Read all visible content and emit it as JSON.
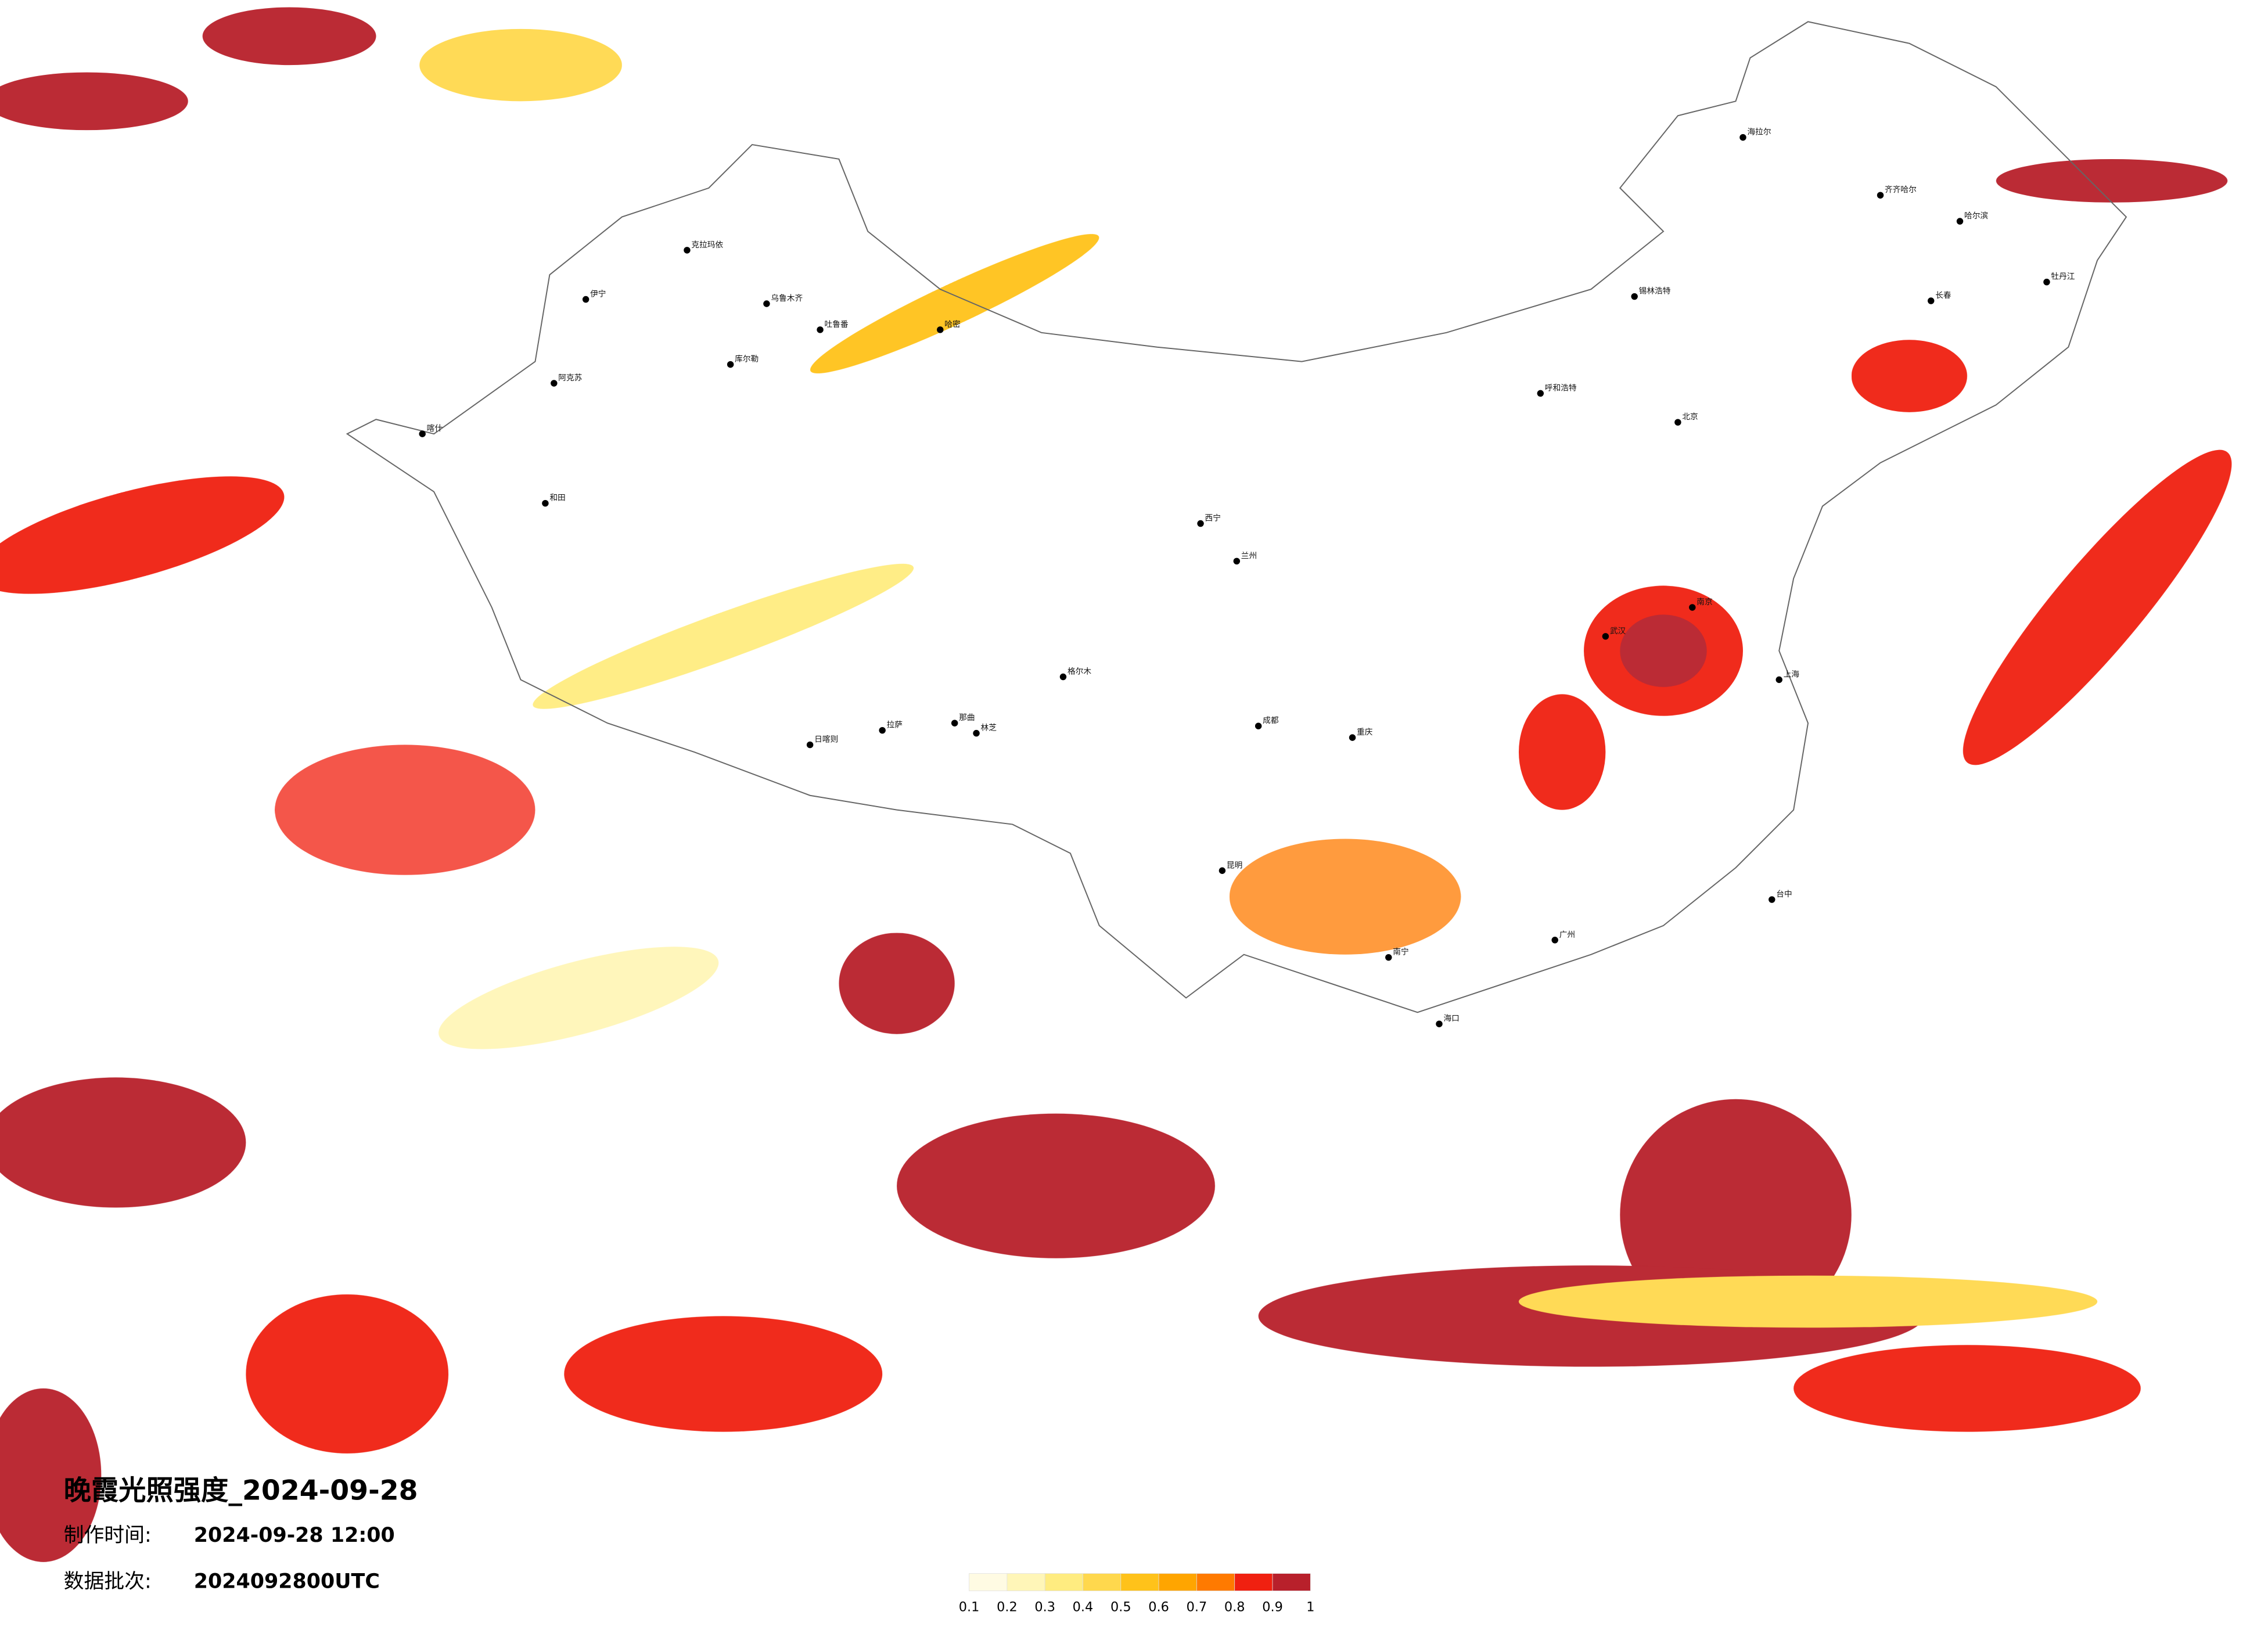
{
  "header": {
    "title": "晚霞光照强度_2024-09-28",
    "made_label": "制作时间:",
    "made_value": "2024-09-28 12:00",
    "batch_label": "数据批次:",
    "batch_value": "2024092800UTC"
  },
  "colorbar": {
    "ticks": [
      0.1,
      0.2,
      0.3,
      0.4,
      0.5,
      0.6,
      0.7,
      0.8,
      0.9,
      1
    ],
    "colors": [
      "#fffbe3",
      "#fff6b8",
      "#ffec80",
      "#ffd84d",
      "#ffc21a",
      "#ffa500",
      "#ff7a00",
      "#f02010",
      "#b8202b"
    ]
  },
  "cities": [
    "乌鲁木齐",
    "克拉玛依",
    "伊宁",
    "阿克苏",
    "和田",
    "喀什",
    "吐鲁番",
    "库尔勒",
    "哈密",
    "日喀则",
    "拉萨",
    "林芝",
    "海拉尔",
    "齐齐哈尔",
    "哈尔滨",
    "长春",
    "呼和浩特",
    "北京",
    "西宁",
    "兰州",
    "成都",
    "重庆",
    "昆明",
    "南宁",
    "广州",
    "海口",
    "台中",
    "武汉",
    "南京",
    "上海",
    "格尔木",
    "那曲",
    "锡林浩特",
    "牡丹江"
  ]
}
